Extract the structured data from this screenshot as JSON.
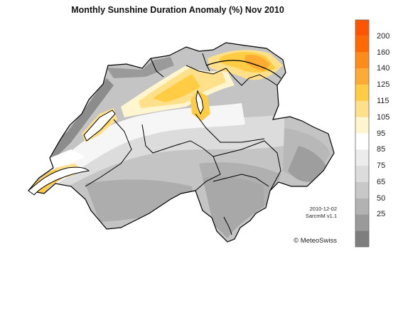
{
  "title": "Monthly Sunshine Duration Anomaly (%) Nov 2010",
  "legend": {
    "bins": [
      {
        "label": "",
        "color": "#ff5500"
      },
      {
        "label": "200",
        "color": "#ff6a00"
      },
      {
        "label": "160",
        "color": "#ff8c1a"
      },
      {
        "label": "140",
        "color": "#ffaa33"
      },
      {
        "label": "125",
        "color": "#ffcc44"
      },
      {
        "label": "115",
        "color": "#ffe08a"
      },
      {
        "label": "105",
        "color": "#fff6cf"
      },
      {
        "label": "95",
        "color": "#ffffff"
      },
      {
        "label": "85",
        "color": "#ececec"
      },
      {
        "label": "75",
        "color": "#dcdcdc"
      },
      {
        "label": "65",
        "color": "#c8c8c8"
      },
      {
        "label": "50",
        "color": "#b2b2b2"
      },
      {
        "label": "25",
        "color": "#9a9a9a"
      },
      {
        "label": "",
        "color": "#7e7e7e"
      }
    ]
  },
  "meta": {
    "date": "2010-12-02",
    "version": "SarcmM v1.1",
    "copyright": "© MeteoSwiss"
  }
}
